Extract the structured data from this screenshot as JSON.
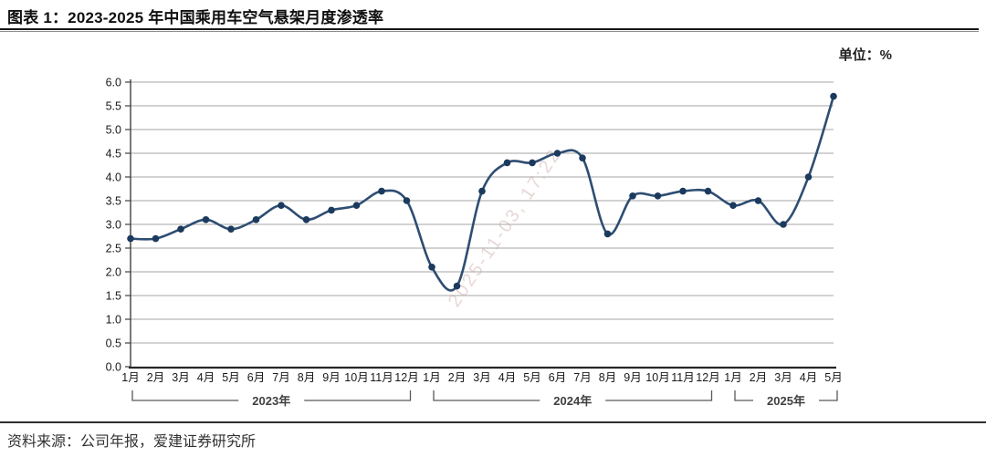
{
  "header": {
    "title": "图表 1：2023-2025 年中国乘用车空气悬架月度渗透率"
  },
  "chart": {
    "unit_label": "单位：%",
    "watermark": "2025-11-03, 17:22"
  },
  "footer": {
    "source": "资料来源：公司年报，爱建证券研究所"
  },
  "chart_data": {
    "type": "line",
    "title": "2023-2025 年中国乘用车空气悬架月度渗透率",
    "unit": "%",
    "xlabel": "",
    "ylabel": "",
    "ylim": [
      0,
      6
    ],
    "ytick_step": 0.5,
    "grid": true,
    "legend_position": "none",
    "line_color": "#2e4d72",
    "marker_color": "#1c3a5e",
    "categories": [
      "1月",
      "2月",
      "3月",
      "4月",
      "5月",
      "6月",
      "7月",
      "8月",
      "9月",
      "10月",
      "11月",
      "12月",
      "1月",
      "2月",
      "3月",
      "4月",
      "5月",
      "6月",
      "7月",
      "8月",
      "9月",
      "10月",
      "11月",
      "12月",
      "1月",
      "2月",
      "3月",
      "4月",
      "5月"
    ],
    "groups": [
      {
        "label": "2023年",
        "start": 0,
        "end": 11
      },
      {
        "label": "2024年",
        "start": 12,
        "end": 23
      },
      {
        "label": "2025年",
        "start": 24,
        "end": 28
      }
    ],
    "series": [
      {
        "name": "中国乘用车空气悬架月度渗透率",
        "values": [
          2.7,
          2.7,
          2.9,
          3.1,
          2.9,
          3.1,
          3.4,
          3.1,
          3.3,
          3.4,
          3.7,
          3.5,
          2.1,
          1.7,
          3.7,
          4.3,
          4.3,
          4.5,
          4.4,
          2.8,
          3.6,
          3.6,
          3.7,
          3.7,
          3.4,
          3.5,
          3.0,
          4.0,
          5.7
        ]
      }
    ]
  }
}
